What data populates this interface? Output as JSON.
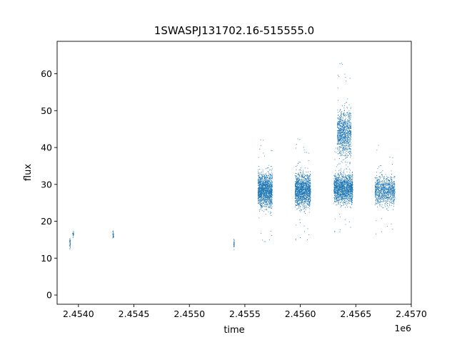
{
  "chart_data": {
    "type": "scatter",
    "title": "1SWASPJ131702.16-515555.0",
    "xlabel": "time",
    "ylabel": "flux",
    "x_offset_label": "1e6",
    "x_tick_labels": [
      "2.4540",
      "2.4545",
      "2.4550",
      "2.4555",
      "2.4560",
      "2.4565",
      "2.4570"
    ],
    "x_tick_values": [
      2454000,
      2454500,
      2455000,
      2455500,
      2456000,
      2456500,
      2457000
    ],
    "y_tick_labels": [
      "0",
      "10",
      "20",
      "30",
      "40",
      "50",
      "60"
    ],
    "y_tick_values": [
      0,
      10,
      20,
      30,
      40,
      50,
      60
    ],
    "xlim": [
      2453808,
      2457000
    ],
    "ylim": [
      -2.5,
      68.8
    ],
    "grid": false,
    "marker_color": "#1f77b4",
    "clusters": [
      {
        "x_range": [
          2453916,
          2453926
        ],
        "y_center": 14.2,
        "y_spread": 1.0,
        "count": 30
      },
      {
        "x_range": [
          2453946,
          2453954
        ],
        "y_center": 16.5,
        "y_spread": 0.8,
        "count": 25
      },
      {
        "x_range": [
          2454306,
          2454316
        ],
        "y_center": 16.5,
        "y_spread": 0.8,
        "count": 30
      },
      {
        "x_range": [
          2455396,
          2455402
        ],
        "y_center": 13.8,
        "y_spread": 1.3,
        "count": 30
      },
      {
        "x_range": [
          2455615,
          2455745
        ],
        "y_center": 28.5,
        "y_spread": 4.0,
        "count": 1400
      },
      {
        "x_range": [
          2455950,
          2456090
        ],
        "y_center": 28.5,
        "y_spread": 4.0,
        "count": 1400
      },
      {
        "x_range": [
          2456300,
          2456470
        ],
        "y_center": 29.0,
        "y_spread": 3.5,
        "count": 1500
      },
      {
        "x_range": [
          2456330,
          2456455
        ],
        "y_center": 44.0,
        "y_spread": 5.5,
        "count": 900
      },
      {
        "x_range": [
          2456670,
          2456850
        ],
        "y_center": 28.5,
        "y_spread": 3.5,
        "count": 900
      }
    ]
  }
}
